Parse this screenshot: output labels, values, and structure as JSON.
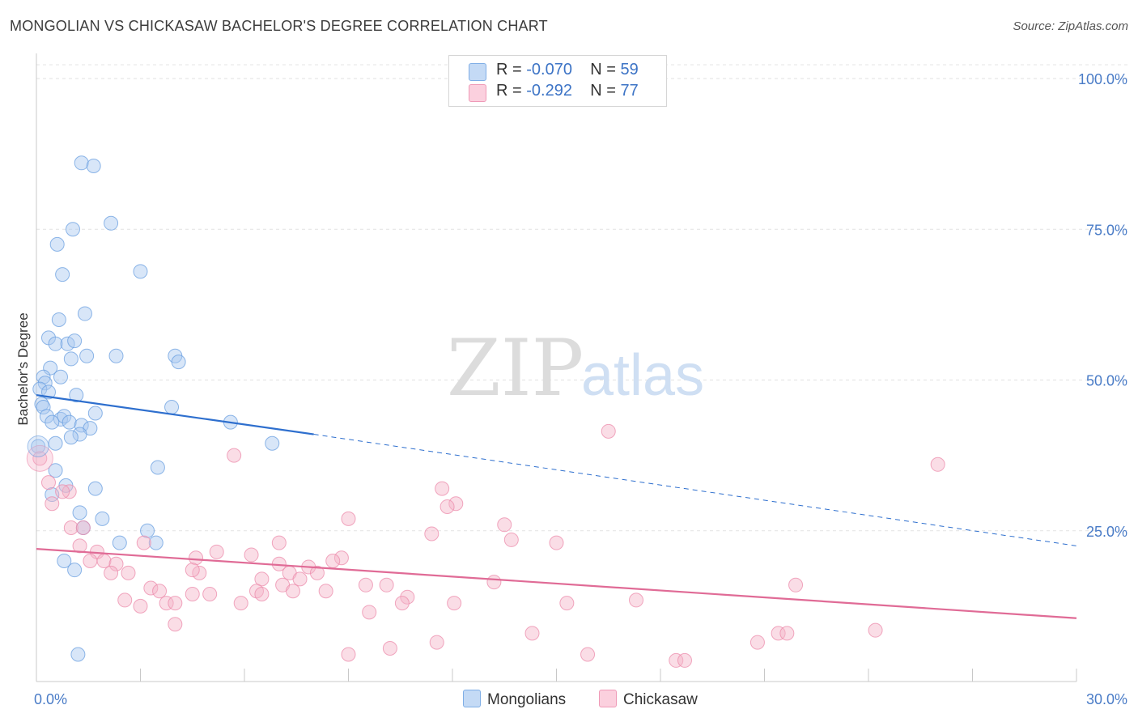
{
  "title": "MONGOLIAN VS CHICKASAW BACHELOR'S DEGREE CORRELATION CHART",
  "source": "Source: ZipAtlas.com",
  "watermark": {
    "zip": "ZIP",
    "atlas": "atlas"
  },
  "legend": {
    "rows": [
      {
        "r_label": "R =",
        "r_value": "-0.070",
        "n_label": "N =",
        "n_value": "59",
        "color": "#a9c8f0"
      },
      {
        "r_label": "R =",
        "r_value": "-0.292",
        "n_label": "N =",
        "n_value": "77",
        "color": "#f5b3c8"
      }
    ]
  },
  "bottom_legend": [
    {
      "label": "Mongolians",
      "color": "#a9c8f0"
    },
    {
      "label": "Chickasaw",
      "color": "#f5b3c8"
    }
  ],
  "chart_data": {
    "type": "scatter",
    "title": "MONGOLIAN VS CHICKASAW BACHELOR'S DEGREE CORRELATION CHART",
    "xlabel": "",
    "ylabel": "Bachelor's Degree",
    "xlim": [
      0,
      30
    ],
    "ylim": [
      0,
      100
    ],
    "x_tick_labels": [
      "0.0%",
      "30.0%"
    ],
    "y_tick_labels": [
      "25.0%",
      "50.0%",
      "75.0%",
      "100.0%"
    ],
    "y_ticks": [
      25,
      50,
      75,
      100
    ],
    "grid": true,
    "legend_position": "top-center",
    "series": [
      {
        "name": "Mongolians",
        "color": "#6a9fe0",
        "fill": "#a9c8f0",
        "trend": {
          "x": [
            0,
            8
          ],
          "y": [
            47.5,
            41
          ],
          "dashed_to": [
            30,
            22.5
          ],
          "color": "#2e6fce"
        },
        "points": [
          [
            1.3,
            86
          ],
          [
            1.65,
            85.5
          ],
          [
            2.15,
            76
          ],
          [
            1.05,
            75
          ],
          [
            0.6,
            72.5
          ],
          [
            3.0,
            68
          ],
          [
            0.75,
            67.5
          ],
          [
            1.4,
            61
          ],
          [
            0.65,
            60
          ],
          [
            0.35,
            57
          ],
          [
            0.55,
            56
          ],
          [
            0.9,
            56
          ],
          [
            1.1,
            56.5
          ],
          [
            1.45,
            54
          ],
          [
            2.3,
            54
          ],
          [
            1.0,
            53.5
          ],
          [
            4.0,
            54
          ],
          [
            4.1,
            53
          ],
          [
            0.4,
            52
          ],
          [
            0.2,
            50.5
          ],
          [
            0.7,
            50.5
          ],
          [
            0.25,
            49.5
          ],
          [
            0.1,
            48.5
          ],
          [
            0.35,
            48
          ],
          [
            1.15,
            47.5
          ],
          [
            0.15,
            46
          ],
          [
            0.2,
            45.5
          ],
          [
            3.9,
            45.5
          ],
          [
            1.7,
            44.5
          ],
          [
            0.3,
            44
          ],
          [
            0.7,
            43.5
          ],
          [
            0.8,
            44
          ],
          [
            0.45,
            43
          ],
          [
            0.95,
            43
          ],
          [
            1.3,
            42.5
          ],
          [
            1.55,
            42
          ],
          [
            5.6,
            43
          ],
          [
            1.25,
            41
          ],
          [
            1.0,
            40.5
          ],
          [
            0.55,
            39.5
          ],
          [
            6.8,
            39.5
          ],
          [
            0.05,
            39
          ],
          [
            0.55,
            35
          ],
          [
            3.5,
            35.5
          ],
          [
            0.85,
            32.5
          ],
          [
            1.7,
            32
          ],
          [
            0.45,
            31
          ],
          [
            1.25,
            28
          ],
          [
            1.9,
            27
          ],
          [
            1.35,
            25.5
          ],
          [
            3.2,
            25
          ],
          [
            2.4,
            23
          ],
          [
            3.45,
            23
          ],
          [
            0.8,
            20
          ],
          [
            1.1,
            18.5
          ],
          [
            1.2,
            4.5
          ]
        ]
      },
      {
        "name": "Chickasaw",
        "color": "#ec8bab",
        "fill": "#f5b3c8",
        "trend": {
          "x": [
            0,
            30
          ],
          "y": [
            22,
            10.5
          ],
          "color": "#e06b96"
        },
        "points": [
          [
            0.1,
            37
          ],
          [
            16.5,
            41.5
          ],
          [
            26,
            36
          ],
          [
            5.7,
            37.5
          ],
          [
            0.35,
            33
          ],
          [
            11.7,
            32
          ],
          [
            0.95,
            31.5
          ],
          [
            0.75,
            31.5
          ],
          [
            12.1,
            29.5
          ],
          [
            11.85,
            29
          ],
          [
            0.45,
            29.5
          ],
          [
            9.0,
            27
          ],
          [
            13.5,
            26
          ],
          [
            1.0,
            25.5
          ],
          [
            1.35,
            25.5
          ],
          [
            11.4,
            24.5
          ],
          [
            13.7,
            23.5
          ],
          [
            15,
            23
          ],
          [
            7.0,
            23
          ],
          [
            3.1,
            23
          ],
          [
            1.25,
            22.5
          ],
          [
            1.75,
            21.5
          ],
          [
            5.2,
            21.5
          ],
          [
            6.2,
            21
          ],
          [
            4.6,
            20.5
          ],
          [
            8.8,
            20.5
          ],
          [
            8.55,
            20
          ],
          [
            1.55,
            20
          ],
          [
            1.95,
            20
          ],
          [
            7.0,
            19.5
          ],
          [
            2.3,
            19.5
          ],
          [
            7.85,
            19
          ],
          [
            2.15,
            18
          ],
          [
            2.65,
            18
          ],
          [
            4.7,
            18
          ],
          [
            7.3,
            18
          ],
          [
            8.1,
            18
          ],
          [
            4.5,
            18.5
          ],
          [
            6.5,
            17
          ],
          [
            7.6,
            17
          ],
          [
            7.1,
            16
          ],
          [
            10.1,
            16
          ],
          [
            9.5,
            16
          ],
          [
            13.2,
            16.5
          ],
          [
            21.9,
            16
          ],
          [
            3.3,
            15.5
          ],
          [
            3.55,
            15
          ],
          [
            6.35,
            15
          ],
          [
            7.4,
            15
          ],
          [
            8.35,
            15
          ],
          [
            4.5,
            14.5
          ],
          [
            5.0,
            14.5
          ],
          [
            6.5,
            14.5
          ],
          [
            10.7,
            14
          ],
          [
            2.55,
            13.5
          ],
          [
            10.55,
            13
          ],
          [
            12.05,
            13
          ],
          [
            15.3,
            13
          ],
          [
            17.3,
            13.5
          ],
          [
            3.75,
            13
          ],
          [
            3.0,
            12.5
          ],
          [
            4.0,
            13
          ],
          [
            5.9,
            13
          ],
          [
            9.6,
            11.5
          ],
          [
            4.0,
            9.5
          ],
          [
            14.3,
            8
          ],
          [
            21.4,
            8
          ],
          [
            21.65,
            8
          ],
          [
            24.2,
            8.5
          ],
          [
            11.55,
            6.5
          ],
          [
            10.2,
            5.5
          ],
          [
            20.8,
            6.5
          ],
          [
            9.0,
            4.5
          ],
          [
            15.9,
            4.5
          ],
          [
            18.45,
            3.5
          ],
          [
            18.7,
            3.5
          ]
        ]
      }
    ]
  }
}
